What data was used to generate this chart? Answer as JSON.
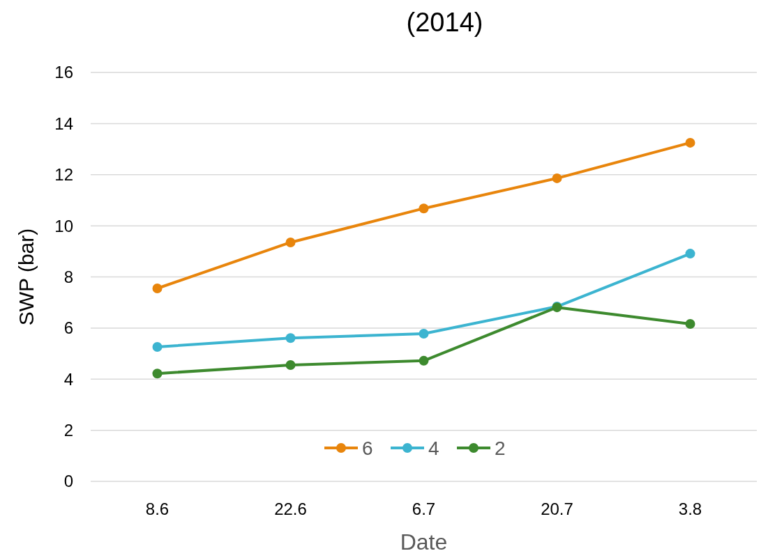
{
  "chart_data": {
    "type": "line",
    "title": "(2014)",
    "xlabel": "Date",
    "ylabel": "SWP (bar)",
    "categories": [
      "8.6",
      "22.6",
      "6.7",
      "20.7",
      "3.8"
    ],
    "series": [
      {
        "name": "6",
        "color": "#e8850c",
        "values": [
          7.55,
          9.35,
          10.68,
          11.86,
          13.25
        ]
      },
      {
        "name": "4",
        "color": "#3cb4d0",
        "values": [
          5.26,
          5.61,
          5.78,
          6.84,
          8.91
        ]
      },
      {
        "name": "2",
        "color": "#3d8a2e",
        "values": [
          4.22,
          4.55,
          4.72,
          6.81,
          6.16
        ]
      }
    ],
    "ylim": [
      0,
      16
    ],
    "yticks": [
      0,
      2,
      4,
      6,
      8,
      10,
      12,
      14,
      16
    ],
    "grid": "y",
    "legend": "bottom",
    "marker": "circle",
    "line_style": "solid"
  }
}
